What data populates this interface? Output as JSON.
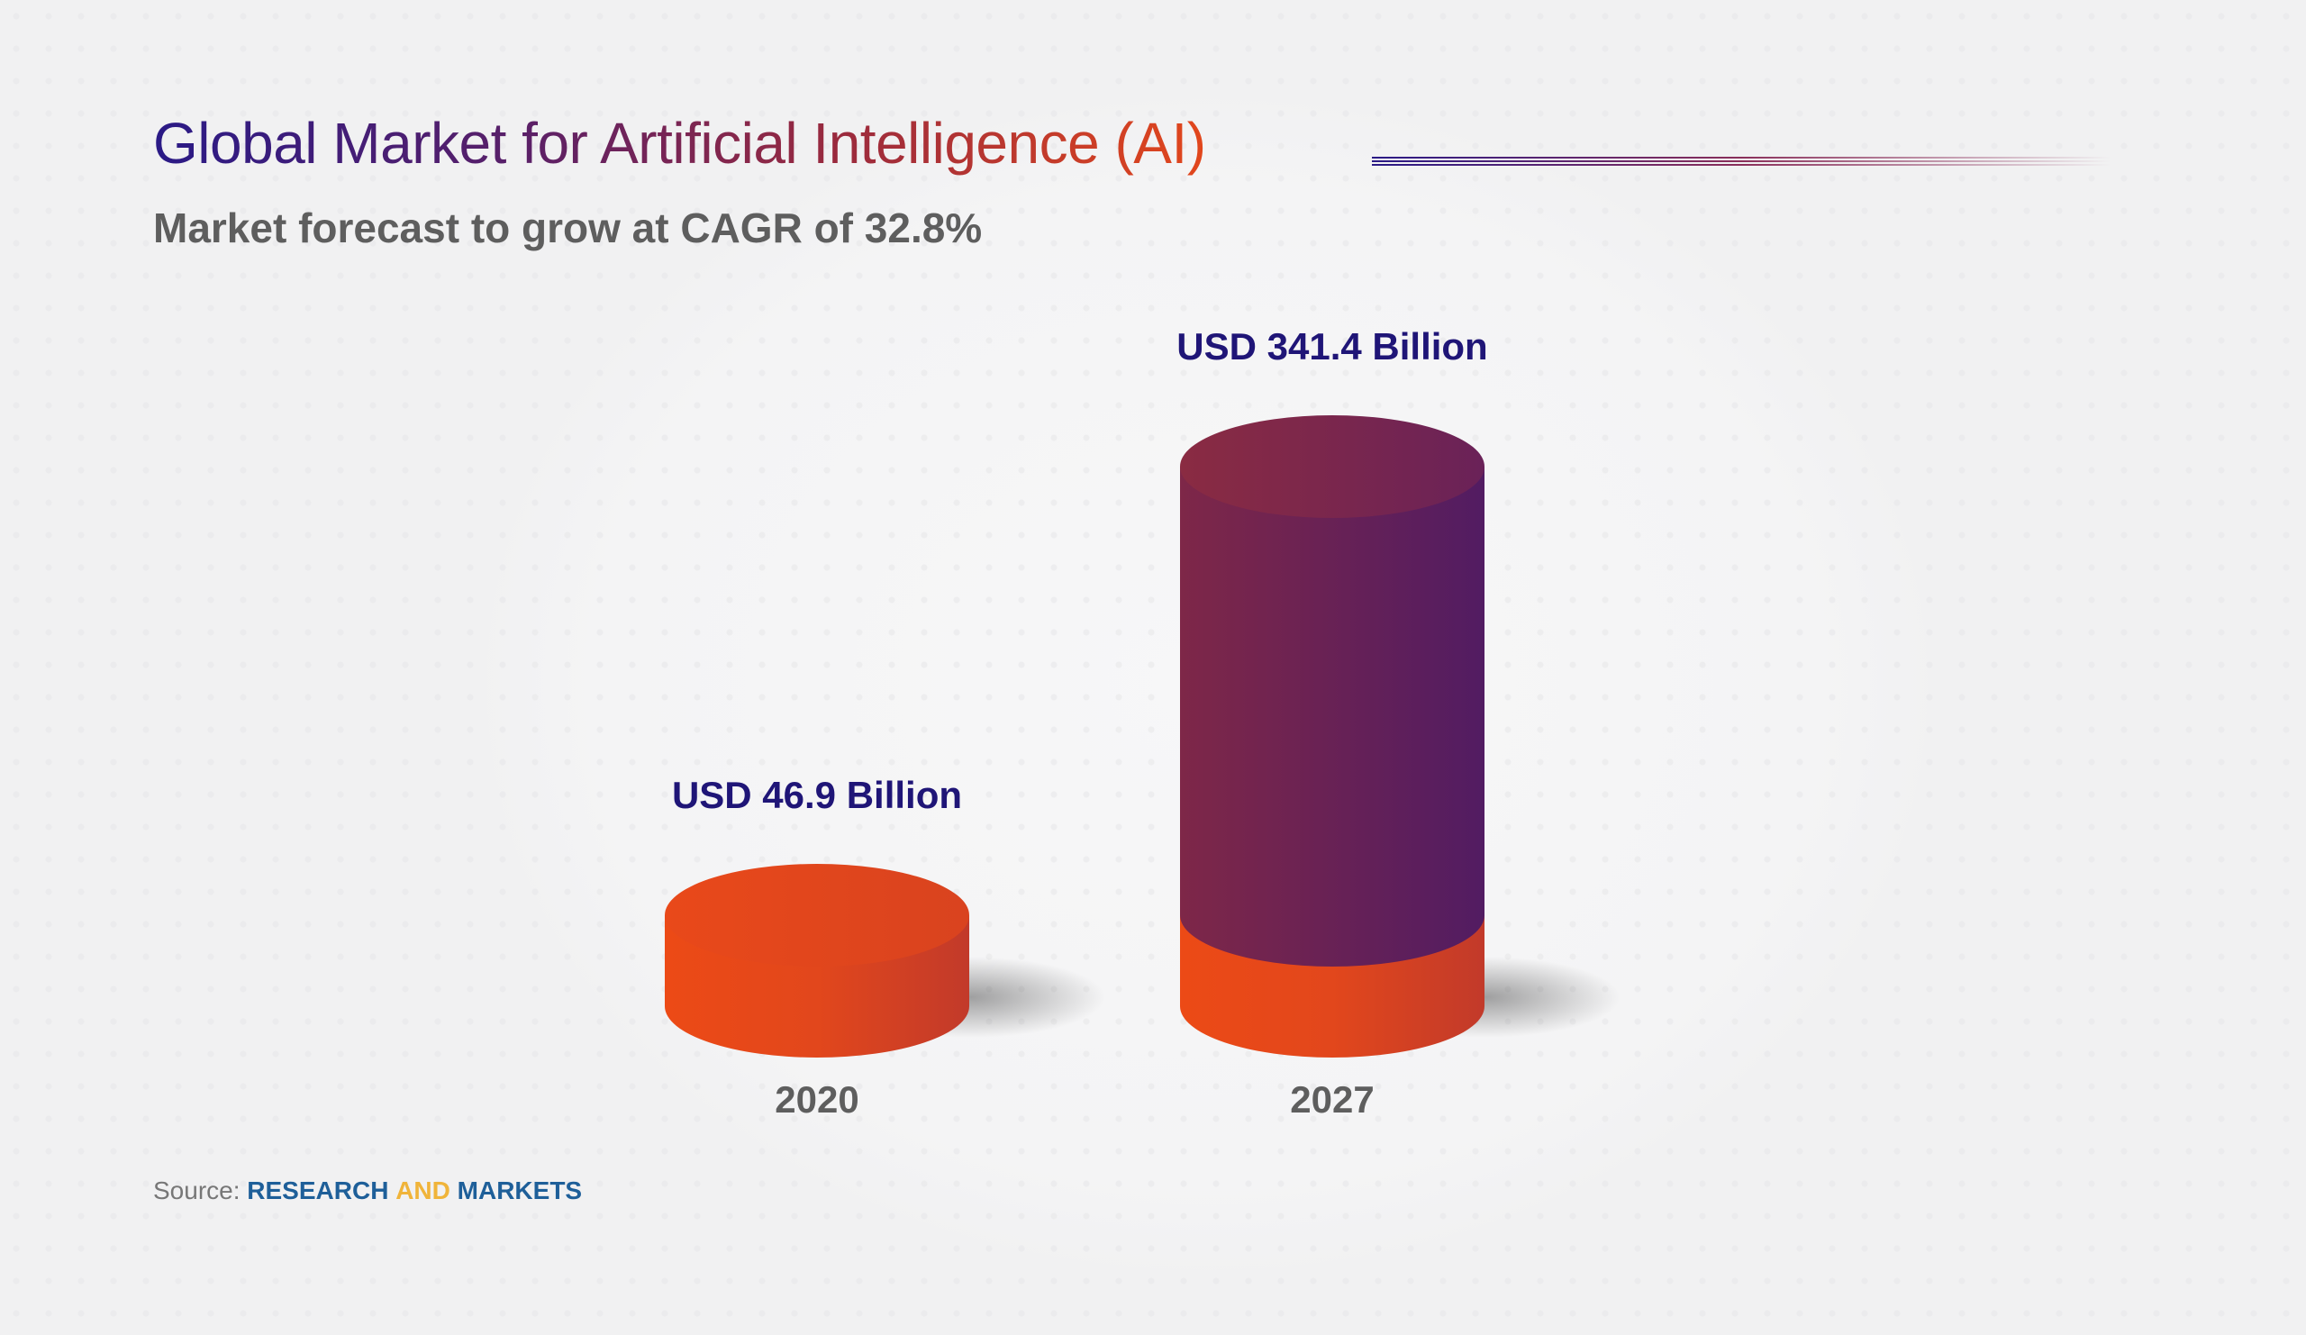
{
  "title": "Global Market for Artificial Intelligence (AI)",
  "subtitle": "Market forecast to grow at CAGR of 32.8%",
  "source": {
    "label": "Source:",
    "brand_part1": "RESEARCH",
    "brand_part2": "AND",
    "brand_part3": "MARKETS"
  },
  "colors": {
    "title_start": "#2a1a86",
    "title_end": "#e2471c",
    "orange": "#e2471c",
    "purple": "#5a1f60",
    "label": "#1f1577",
    "brand_blue": "#1e5f99",
    "brand_yellow": "#f0b43a"
  },
  "chart_data": {
    "type": "bar",
    "style": "3d-cylinder",
    "categories": [
      "2020",
      "2027"
    ],
    "values": [
      46.9,
      341.4
    ],
    "data_labels": [
      "USD 46.9 Billion",
      "USD 341.4 Billion"
    ],
    "unit": "USD Billion",
    "grid": false,
    "legend": "none"
  }
}
